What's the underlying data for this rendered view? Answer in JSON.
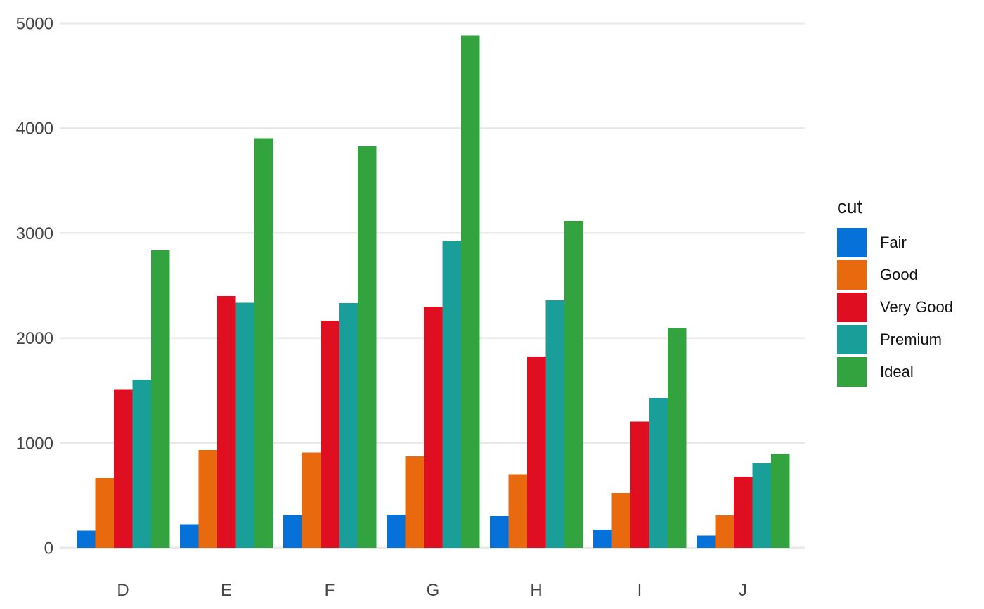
{
  "chart_data": {
    "type": "bar",
    "title": "",
    "xlabel": "",
    "ylabel": "",
    "legend_title": "cut",
    "legend_position": "right",
    "grid": "horizontal-only",
    "categories": [
      "D",
      "E",
      "F",
      "G",
      "H",
      "I",
      "J"
    ],
    "series": [
      {
        "name": "Fair",
        "color": "#0671d8",
        "values": [
          163,
          224,
          312,
          314,
          303,
          175,
          119
        ]
      },
      {
        "name": "Good",
        "color": "#e8690e",
        "values": [
          662,
          933,
          909,
          871,
          702,
          522,
          307
        ]
      },
      {
        "name": "Very Good",
        "color": "#e00e21",
        "values": [
          1513,
          2400,
          2164,
          2299,
          1824,
          1204,
          678
        ]
      },
      {
        "name": "Premium",
        "color": "#1a9e9a",
        "values": [
          1603,
          2337,
          2331,
          2924,
          2360,
          1428,
          808
        ]
      },
      {
        "name": "Ideal",
        "color": "#32a33e",
        "values": [
          2834,
          3903,
          3826,
          4884,
          3115,
          2093,
          896
        ]
      }
    ],
    "y_ticks": [
      0,
      1000,
      2000,
      3000,
      4000,
      5000
    ],
    "y_tick_labels": [
      "0",
      "1000",
      "2000",
      "3000",
      "4000",
      "5000"
    ],
    "ylim": [
      0,
      5150
    ]
  },
  "colors": {
    "background": "#ffffff",
    "gridline": "#e9e9e9",
    "axis_text": "#454545",
    "legend_text": "#121212"
  }
}
